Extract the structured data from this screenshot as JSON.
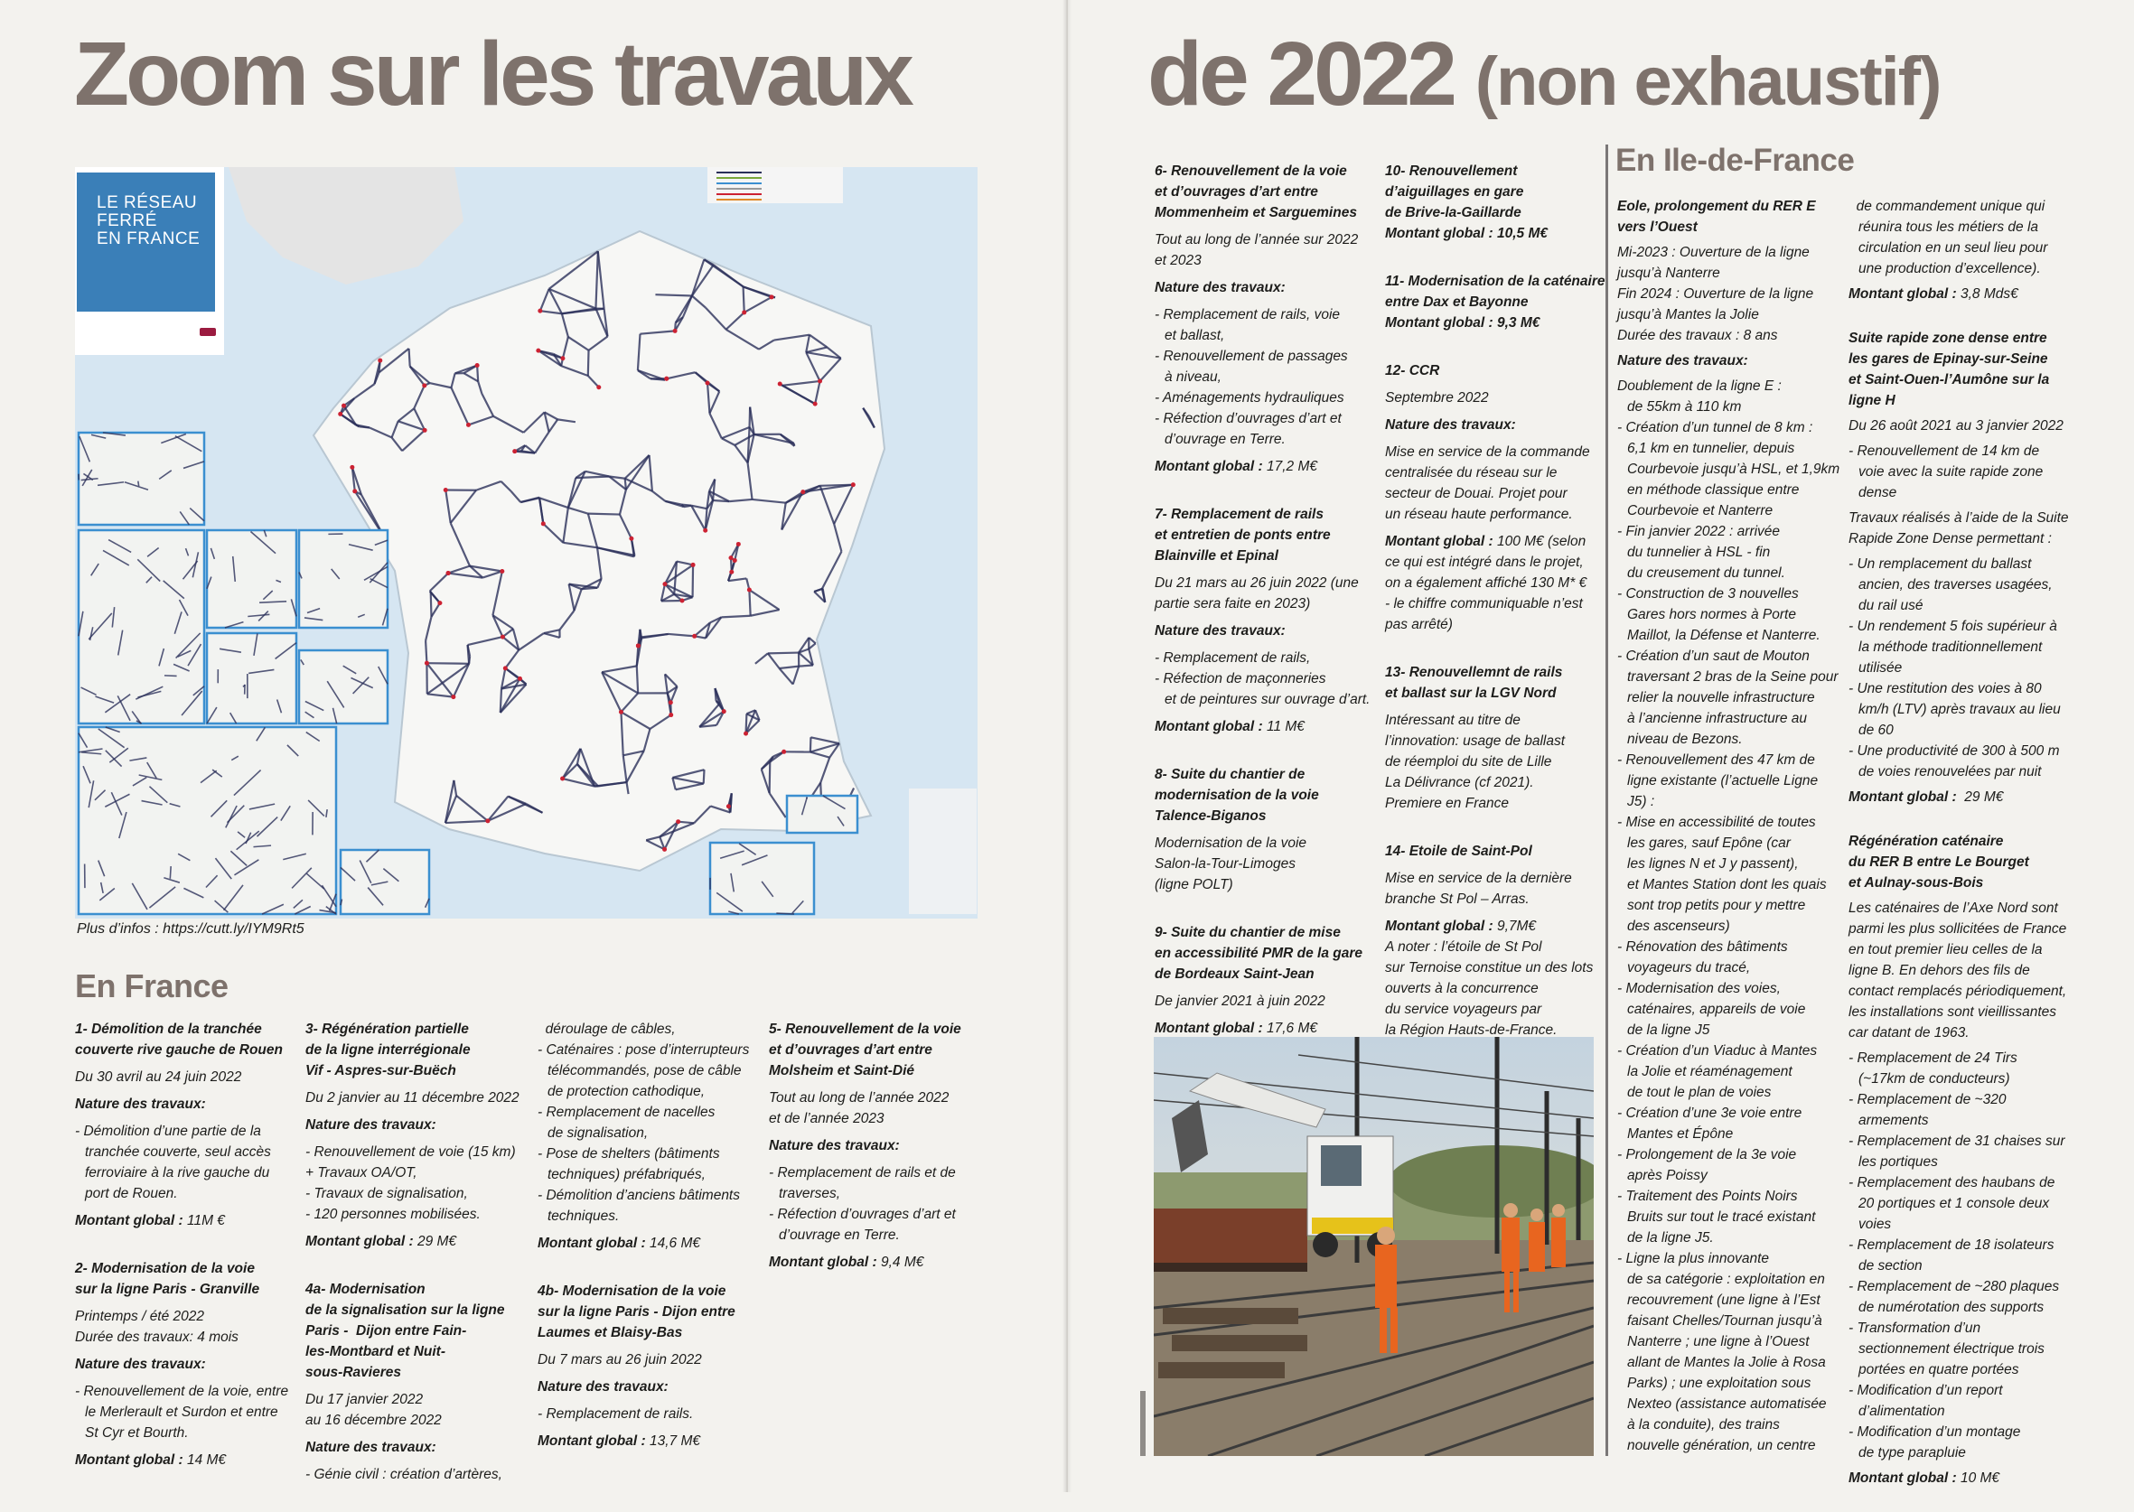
{
  "header": {
    "title_left": "Zoom sur les travaux",
    "title_right_main": "de 2022",
    "title_right_paren": "(non exhaustif)"
  },
  "map": {
    "logo_text": "LE RÉSEAU\nFERRÉ\nEN FRANCE",
    "caption": "Plus d’infos : https://cutt.ly/IYM9Rt5",
    "colors": {
      "sea": "#d6e6f2",
      "logo": "#3a7fb8",
      "lines": "#2a2f5a",
      "insets": "#3b8fd0"
    }
  },
  "colors": {
    "title": "#7e726c",
    "text": "#1d1d1b",
    "background": "#f3f2ee"
  },
  "france": {
    "heading": "En France",
    "columns": [
      {
        "blocks": [
          {
            "paras": [
              {
                "t": "h",
                "text": "1- Démolition de la tranchée\ncouverte rive gauche de Rouen"
              },
              {
                "t": "p",
                "text": "Du 30 avril au 24 juin 2022"
              },
              {
                "t": "n",
                "text": "Nature des travaux:"
              },
              {
                "t": "list",
                "items": [
                  "- Démolition d’une partie de la\ntranchée couverte, seul accès\nferroviaire à la rive gauche du\nport de Rouen."
                ]
              },
              {
                "t": "m",
                "label": "Montant global :",
                "value": " 11M €"
              }
            ]
          },
          {
            "paras": [
              {
                "t": "h",
                "text": "2- Modernisation de la voie\nsur la ligne Paris - Granville"
              },
              {
                "t": "p",
                "text": "Printemps / été 2022\nDurée des travaux: 4 mois"
              },
              {
                "t": "n",
                "text": "Nature des travaux:"
              },
              {
                "t": "list",
                "items": [
                  "- Renouvellement de la voie, entre\nle Merlerault et Surdon et entre\nSt Cyr et Bourth."
                ]
              },
              {
                "t": "m",
                "label": "Montant global :",
                "value": " 14 M€"
              }
            ]
          }
        ]
      },
      {
        "blocks": [
          {
            "paras": [
              {
                "t": "h",
                "text": "3- Régénération partielle\nde la ligne interrégionale\nVif - Aspres-sur-Buëch"
              },
              {
                "t": "p",
                "text": "Du 2 janvier au 11 décembre 2022"
              },
              {
                "t": "n",
                "text": "Nature des travaux:"
              },
              {
                "t": "p",
                "text": "- Renouvellement de voie (15 km)\n+ Travaux OA/OT,\n- Travaux de signalisation,\n- 120 personnes mobilisées."
              },
              {
                "t": "m",
                "label": "Montant global :",
                "value": " 29 M€"
              }
            ]
          },
          {
            "paras": [
              {
                "t": "h",
                "text": "4a- Modernisation\nde la signalisation sur la ligne\nParis -  Dijon entre Fain-\nles-Montbard et Nuit-\nsous-Ravieres"
              },
              {
                "t": "p",
                "text": "Du 17 janvier 2022\nau 16 décembre 2022"
              },
              {
                "t": "n",
                "text": "Nature des travaux:"
              },
              {
                "t": "list",
                "items": [
                  "- Génie civil : création d’artères,"
                ]
              }
            ]
          }
        ]
      },
      {
        "blocks": [
          {
            "paras": [
              {
                "t": "list",
                "items": [
                  "  déroulage de câbles,",
                  "- Caténaires : pose d’interrupteurs\ntélécommandés, pose de câble\nde protection cathodique,",
                  "- Remplacement de nacelles\nde signalisation,",
                  "- Pose de shelters (bâtiments\ntechniques) préfabriqués,",
                  "- Démolition d’anciens bâtiments\ntechniques."
                ]
              },
              {
                "t": "m",
                "label": "Montant global :",
                "value": " 14,6 M€"
              }
            ]
          },
          {
            "paras": [
              {
                "t": "h",
                "text": "4b- Modernisation de la voie\nsur la ligne Paris - Dijon entre\nLaumes et Blaisy-Bas"
              },
              {
                "t": "p",
                "text": "Du 7 mars au 26 juin 2022"
              },
              {
                "t": "n",
                "text": "Nature des travaux:"
              },
              {
                "t": "list",
                "items": [
                  "- Remplacement de rails."
                ]
              },
              {
                "t": "m",
                "label": "Montant global :",
                "value": " 13,7 M€"
              }
            ]
          }
        ]
      },
      {
        "blocks": [
          {
            "paras": [
              {
                "t": "h",
                "text": "5- Renouvellement de la voie\net d’ouvrages d’art entre\nMolsheim et Saint-Dié"
              },
              {
                "t": "p",
                "text": "Tout au long de l’année 2022\net de l’année 2023"
              },
              {
                "t": "n",
                "text": "Nature des travaux:"
              },
              {
                "t": "list",
                "items": [
                  "- Remplacement de rails et de\ntraverses,",
                  "- Réfection d’ouvrages d’art et\nd’ouvrage en Terre."
                ]
              },
              {
                "t": "m",
                "label": "Montant global :",
                "value": " 9,4 M€"
              }
            ]
          }
        ]
      }
    ]
  },
  "right_page": {
    "columns": [
      {
        "blocks": [
          {
            "paras": [
              {
                "t": "h",
                "text": "6- Renouvellement de la voie\net d’ouvrages d’art entre\nMommenheim et Sarguemines"
              },
              {
                "t": "p",
                "text": "Tout au long de l’année sur 2022\net 2023"
              },
              {
                "t": "n",
                "text": "Nature des travaux:"
              },
              {
                "t": "list",
                "items": [
                  "- Remplacement de rails, voie\net ballast,",
                  "- Renouvellement de passages\nà niveau,",
                  "- Aménagements hydrauliques",
                  "- Réfection d’ouvrages d’art et\nd’ouvrage en Terre."
                ]
              },
              {
                "t": "m",
                "label": "Montant global :",
                "value": " 17,2 M€"
              }
            ]
          },
          {
            "paras": [
              {
                "t": "h",
                "text": "7- Remplacement de rails\net entretien de ponts entre\nBlainville et Epinal"
              },
              {
                "t": "p",
                "text": "Du 21 mars au 26 juin 2022 (une\npartie sera faite en 2023)"
              },
              {
                "t": "n",
                "text": "Nature des travaux:"
              },
              {
                "t": "list",
                "items": [
                  "- Remplacement de rails,",
                  "- Réfection de maçonneries\net de peintures sur ouvrage d’art."
                ]
              },
              {
                "t": "m",
                "label": "Montant global :",
                "value": " 11 M€"
              }
            ]
          },
          {
            "paras": [
              {
                "t": "h",
                "text": "8- Suite du chantier de\nmodernisation de la voie\nTalence-Biganos"
              },
              {
                "t": "p",
                "text": "Modernisation de la voie\nSalon-la-Tour-Limoges\n(ligne POLT)"
              }
            ]
          },
          {
            "paras": [
              {
                "t": "h",
                "text": "9- Suite du chantier de mise\nen accessibilité PMR de la gare\nde Bordeaux Saint-Jean"
              },
              {
                "t": "p",
                "text": "De janvier 2021 à juin 2022"
              },
              {
                "t": "m",
                "label": "Montant global :",
                "value": " 17,6 M€"
              }
            ]
          }
        ]
      },
      {
        "blocks": [
          {
            "paras": [
              {
                "t": "h",
                "text": "10- Renouvellement\nd’aiguillages en gare\nde Brive-la-Gaillarde\nMontant global : 10,5 M€"
              }
            ]
          },
          {
            "paras": [
              {
                "t": "h",
                "text": "11- Modernisation de la caténaire\nentre Dax et Bayonne\nMontant global : 9,3 M€"
              }
            ]
          },
          {
            "paras": [
              {
                "t": "h",
                "text": "12- CCR"
              },
              {
                "t": "p",
                "text": "Septembre 2022"
              },
              {
                "t": "n",
                "text": "Nature des travaux:"
              },
              {
                "t": "p",
                "text": "Mise en service de la commande\ncentralisée du réseau sur le\nsecteur de Douai. Projet pour\nun réseau haute performance."
              },
              {
                "t": "m",
                "label": "Montant global :",
                "value": " 100 M€ (selon\nce qui est intégré dans le projet,\non a également affiché 130 M* €\n- le chiffre communiquable n’est\npas arrêté)"
              }
            ]
          },
          {
            "paras": [
              {
                "t": "h",
                "text": "13- Renouvellemnt de rails\net ballast sur la LGV Nord"
              },
              {
                "t": "p",
                "text": "Intéressant au titre de\nl’innovation: usage de ballast\nde réemploi du site de Lille\nLa Délivrance (cf 2021).\nPremiere en France"
              }
            ]
          },
          {
            "paras": [
              {
                "t": "h",
                "text": "14- Etoile de Saint-Pol"
              },
              {
                "t": "p",
                "text": "Mise en service de la dernière\nbranche St Pol – Arras."
              },
              {
                "t": "m",
                "label": "Montant global :",
                "value": " 9,7M€\nA noter : l’étoile de St Pol\nsur Ternoise constitue un des lots\nouverts à la concurrence\ndu service voyageurs par\nla Région Hauts-de-France."
              }
            ]
          }
        ]
      }
    ]
  },
  "idf": {
    "heading": "En Ile-de-France",
    "columns": [
      {
        "blocks": [
          {
            "paras": [
              {
                "t": "h",
                "text": "Eole, prolongement du RER E\nvers l’Ouest"
              },
              {
                "t": "p",
                "text": "Mi-2023 : Ouverture de la ligne\njusqu’à Nanterre\nFin 2024 : Ouverture de la ligne\njusqu’à Mantes la Jolie\nDurée des travaux : 8 ans"
              },
              {
                "t": "n",
                "text": "Nature des travaux:"
              },
              {
                "t": "list",
                "items": [
                  "Doublement de la ligne E :\nde 55km à 110 km",
                  "- Création d’un tunnel de 8 km :\n6,1 km en tunnelier, depuis\nCourbevoie jusqu’à HSL, et 1,9km\nen méthode classique entre\nCourbevoie et Nanterre",
                  "- Fin janvier 2022 : arrivée\ndu tunnelier à HSL - fin\ndu creusement du tunnel.",
                  "- Construction de 3 nouvelles\nGares hors normes à Porte\nMaillot, la Défense et Nanterre.",
                  "- Création d’un saut de Mouton\ntraversant 2 bras de la Seine pour\nrelier la nouvelle infrastructure\nà l’ancienne infrastructure au\nniveau de Bezons.",
                  "- Renouvellement des 47 km de\nligne existante (l’actuelle Ligne\nJ5) :",
                  "- Mise en accessibilité de toutes\nles gares, sauf Epône (car\nles lignes N et J y passent),\net Mantes Station dont les quais\nsont trop petits pour y mettre\ndes ascenseurs)",
                  "- Rénovation des bâtiments\nvoyageurs du tracé,",
                  "- Modernisation des voies,\ncaténaires, appareils de voie\nde la ligne J5",
                  "- Création d’un Viaduc à Mantes\nla Jolie et réaménagement\nde tout le plan de voies",
                  "- Création d’une 3e voie entre\nMantes et Épône",
                  "- Prolongement de la 3e voie\naprès Poissy",
                  "- Traitement des Points Noirs\nBruits sur tout le tracé existant\nde la ligne J5.",
                  "- Ligne la plus innovante\nde sa catégorie : exploitation en\nrecouvrement (une ligne à l’Est\nfaisant Chelles/Tournan jusqu’à\nNanterre ; une ligne à l’Ouest\nallant de Mantes la Jolie à Rosa\nParks) ; une exploitation sous\nNexteo (assistance automatisée\nà la conduite), des trains\nnouvelle génération, un centre"
                ]
              }
            ]
          }
        ]
      },
      {
        "blocks": [
          {
            "paras": [
              {
                "t": "list",
                "items": [
                  "  de commandement unique qui\nréunira tous les métiers de la\ncirculation en un seul lieu pour\nune production d’excellence)."
                ]
              },
              {
                "t": "m",
                "label": "Montant global :",
                "value": " 3,8 Mds€"
              }
            ]
          },
          {
            "paras": [
              {
                "t": "h",
                "text": "Suite rapide zone dense entre\nles gares de Epinay-sur-Seine\net Saint-Ouen-l’Aumône sur la\nligne H"
              },
              {
                "t": "p",
                "text": "Du 26 août 2021 au 3 janvier 2022"
              },
              {
                "t": "list",
                "items": [
                  "- Renouvellement de 14 km de\nvoie avec la suite rapide zone\ndense"
                ]
              },
              {
                "t": "p",
                "text": "Travaux réalisés à l’aide de la Suite\nRapide Zone Dense permettant :"
              },
              {
                "t": "list",
                "items": [
                  "- Un remplacement du ballast\nancien, des traverses usagées,\ndu rail usé",
                  "- Un rendement 5 fois supérieur à\nla méthode traditionnellement\nutilisée",
                  "- Une restitution des voies à 80\nkm/h (LTV) après travaux au lieu\nde 60",
                  "- Une productivité de 300 à 500 m\nde voies renouvelées par nuit"
                ]
              },
              {
                "t": "m",
                "label": "Montant global :",
                "value": "  29 M€"
              }
            ]
          },
          {
            "paras": [
              {
                "t": "h",
                "text": "Régénération caténaire\ndu RER B entre Le Bourget\net Aulnay-sous-Bois"
              },
              {
                "t": "p",
                "text": "Les caténaires de l’Axe Nord sont\nparmi les plus sollicitées de France\nen tout premier lieu celles de la\nligne B. En dehors des fils de\ncontact remplacés périodiquement,\nles installations sont vieillissantes\ncar datant de 1963."
              },
              {
                "t": "list",
                "items": [
                  "- Remplacement de 24 Tirs\n(~17km de conducteurs)",
                  "- Remplacement de ~320\narmements",
                  "- Remplacement de 31 chaises sur\nles portiques",
                  "- Remplacement des haubans de\n20 portiques et 1 console deux\nvoies",
                  "- Remplacement de 18 isolateurs\nde section",
                  "- Remplacement de ~280 plaques\nde numérotation des supports",
                  "- Transformation d’un\nsectionnement électrique trois\nportées en quatre portées",
                  "- Modification d’un report\nd’alimentation",
                  "- Modification d’un montage\nde type parapluie"
                ]
              },
              {
                "t": "m",
                "label": "Montant global :",
                "value": " 10 M€"
              }
            ]
          }
        ]
      }
    ]
  }
}
